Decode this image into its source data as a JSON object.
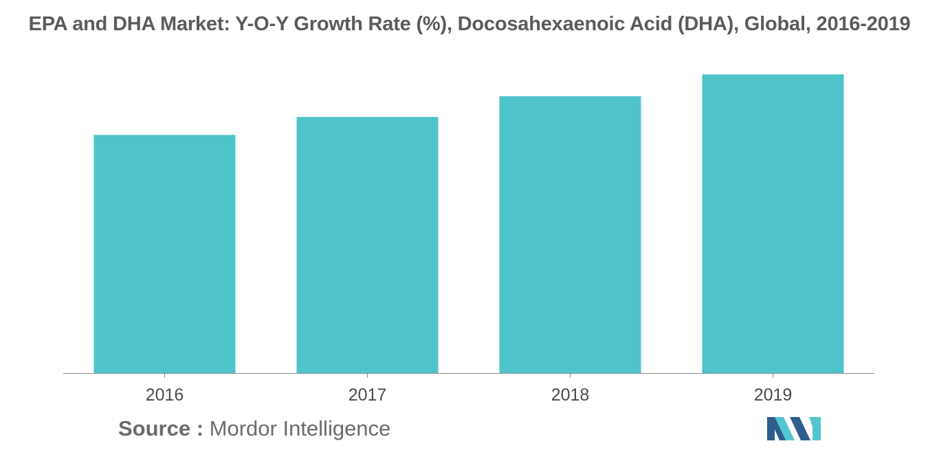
{
  "chart_data": {
    "type": "bar",
    "title": "EPA and DHA Market: Y-O-Y Growth Rate (%), Docosahexaenoic Acid (DHA), Global, 2016-2019",
    "categories": [
      "2016",
      "2017",
      "2018",
      "2019"
    ],
    "values": [
      7.95,
      8.55,
      9.24,
      9.97
    ],
    "ylim": [
      0,
      10
    ],
    "xlabel": "",
    "ylabel": "",
    "grid": false,
    "bar_color": "#4fc3ca",
    "axis_color": "#8a8a8a"
  },
  "source": {
    "label": "Source :",
    "text": "Mordor Intelligence"
  },
  "logo": {
    "icon": "mordor-intelligence-logo",
    "colors": [
      "#2f5e8e",
      "#54c6cf"
    ]
  }
}
